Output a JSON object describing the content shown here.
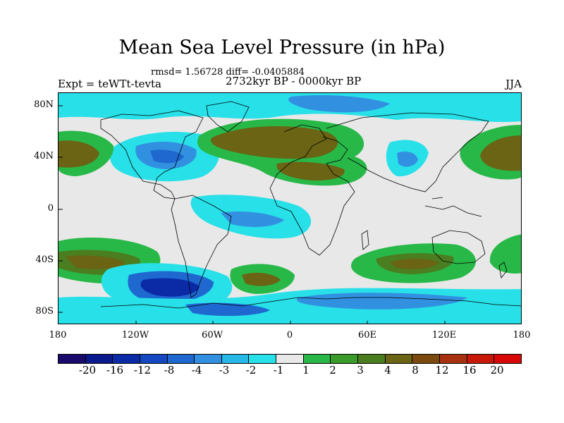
{
  "title": "Mean Sea Level Pressure (in hPa)",
  "stats": "rmsd= 1.56728 diff= -0.0405884",
  "experiment": "Expt = teWTt-tevta",
  "period": "2732kyr BP - 0000kyr BP",
  "season": "JJA",
  "lat_labels": [
    "80N",
    "40N",
    "0",
    "40S",
    "80S"
  ],
  "lon_labels": [
    "180",
    "120W",
    "60W",
    "0",
    "60E",
    "120E",
    "180"
  ],
  "colorbar": {
    "colors": [
      "#1a0a6b",
      "#0a1a8c",
      "#0a2aa6",
      "#1448c0",
      "#1e68d0",
      "#3290e0",
      "#28b8e8",
      "#28e0e8",
      "#e8e8e8",
      "#28b848",
      "#3a9a2a",
      "#4a7e20",
      "#6a6414",
      "#7a4a0e",
      "#a83210",
      "#c81808",
      "#d80808"
    ],
    "labels": [
      "-20",
      "-16",
      "-12",
      "-8",
      "-4",
      "-3",
      "-2",
      "-1",
      "1",
      "2",
      "3",
      "4",
      "8",
      "12",
      "16",
      "20"
    ]
  },
  "ocean_color": "#e8e8e8"
}
